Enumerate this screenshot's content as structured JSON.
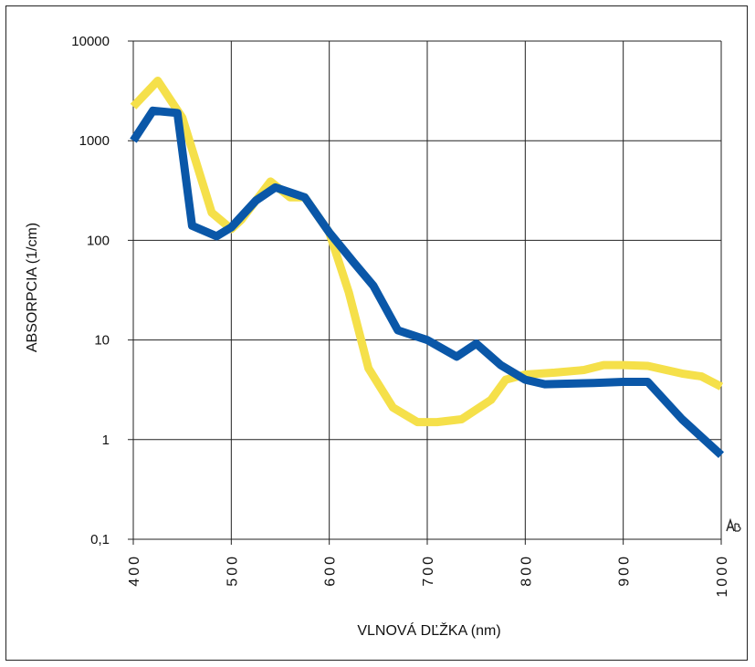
{
  "chart_data": {
    "type": "line",
    "title": "",
    "xlabel": "VLNOVÁ DĽŽKA (nm)",
    "ylabel": "ABSORPCIA (1/cm)",
    "x_scale": "linear",
    "y_scale": "log",
    "xlim": [
      400,
      1000
    ],
    "ylim": [
      0.1,
      10000
    ],
    "x_ticks": [
      400,
      500,
      600,
      700,
      800,
      900,
      1000
    ],
    "x_tick_labels": [
      "400",
      "500",
      "600",
      "700",
      "800",
      "900",
      "1000"
    ],
    "y_ticks": [
      0.1,
      1,
      10,
      100,
      1000,
      10000
    ],
    "y_tick_labels": [
      "0,1",
      "1",
      "10",
      "100",
      "1000",
      "10000"
    ],
    "grid": true,
    "legend": "none",
    "series": [
      {
        "color": "#f5e04a",
        "points": [
          [
            400,
            2200
          ],
          [
            425,
            4000
          ],
          [
            450,
            1700
          ],
          [
            480,
            190
          ],
          [
            500,
            130
          ],
          [
            510,
            160
          ],
          [
            540,
            390
          ],
          [
            560,
            270
          ],
          [
            575,
            270
          ],
          [
            600,
            120
          ],
          [
            620,
            30
          ],
          [
            640,
            5.2
          ],
          [
            665,
            2.1
          ],
          [
            690,
            1.5
          ],
          [
            710,
            1.5
          ],
          [
            735,
            1.6
          ],
          [
            750,
            2.0
          ],
          [
            765,
            2.5
          ],
          [
            780,
            4.0
          ],
          [
            800,
            4.5
          ],
          [
            830,
            4.7
          ],
          [
            860,
            5.0
          ],
          [
            880,
            5.6
          ],
          [
            900,
            5.6
          ],
          [
            925,
            5.5
          ],
          [
            960,
            4.6
          ],
          [
            980,
            4.3
          ],
          [
            1000,
            3.4
          ]
        ]
      },
      {
        "color": "#0a57a8",
        "points": [
          [
            400,
            1000
          ],
          [
            420,
            2000
          ],
          [
            445,
            1900
          ],
          [
            460,
            140
          ],
          [
            485,
            110
          ],
          [
            500,
            135
          ],
          [
            525,
            250
          ],
          [
            545,
            340
          ],
          [
            575,
            270
          ],
          [
            600,
            120
          ],
          [
            625,
            60
          ],
          [
            645,
            35
          ],
          [
            670,
            12.5
          ],
          [
            700,
            10
          ],
          [
            730,
            6.8
          ],
          [
            750,
            9.2
          ],
          [
            775,
            5.6
          ],
          [
            800,
            4.0
          ],
          [
            820,
            3.6
          ],
          [
            870,
            3.7
          ],
          [
            900,
            3.8
          ],
          [
            925,
            3.8
          ],
          [
            960,
            1.6
          ],
          [
            1000,
            0.7
          ]
        ]
      }
    ],
    "annotations": [
      {
        "text": "AB",
        "note": "small logo mark at right edge"
      }
    ]
  }
}
